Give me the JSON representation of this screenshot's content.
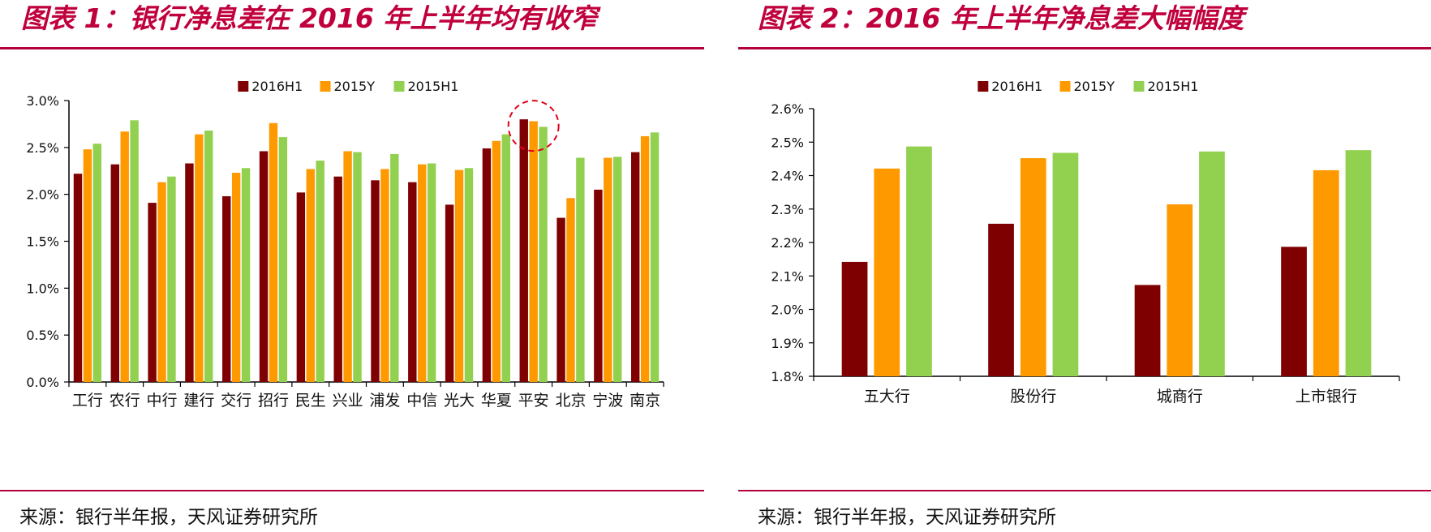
{
  "figures": [
    {
      "title": "图表 1：银行净息差在 2016 年上半年均有收窄",
      "source": "来源：银行半年报，天风证券研究所"
    },
    {
      "title": "图表 2：2016 年上半年净息差大幅幅度",
      "source": "来源：银行半年报，天风证券研究所"
    }
  ],
  "chart_data": [
    {
      "type": "bar",
      "title": "",
      "xlabel": "",
      "ylabel": "",
      "categories": [
        "工行",
        "农行",
        "中行",
        "建行",
        "交行",
        "招行",
        "民生",
        "兴业",
        "浦发",
        "中信",
        "光大",
        "华夏",
        "平安",
        "北京",
        "宁波",
        "南京"
      ],
      "series": [
        {
          "name": "2016H1",
          "color": "#7f0000",
          "values": [
            2.22,
            2.32,
            1.91,
            2.33,
            1.98,
            2.46,
            2.02,
            2.19,
            2.15,
            2.13,
            1.89,
            2.49,
            2.8,
            1.75,
            2.05,
            2.45
          ]
        },
        {
          "name": "2015Y",
          "color": "#ff9900",
          "values": [
            2.48,
            2.67,
            2.13,
            2.64,
            2.23,
            2.76,
            2.27,
            2.46,
            2.27,
            2.32,
            2.26,
            2.57,
            2.78,
            1.96,
            2.39,
            2.62
          ]
        },
        {
          "name": "2015H1",
          "color": "#92d050",
          "values": [
            2.54,
            2.79,
            2.19,
            2.68,
            2.28,
            2.61,
            2.36,
            2.45,
            2.43,
            2.33,
            2.28,
            2.64,
            2.72,
            2.39,
            2.4,
            2.66
          ]
        }
      ],
      "ylim": [
        0,
        3.0
      ],
      "yticks": [
        "0.0%",
        "0.5%",
        "1.0%",
        "1.5%",
        "2.0%",
        "2.5%",
        "3.0%"
      ],
      "grid": false,
      "legend": "top-center",
      "annotation": {
        "type": "dashed-circle",
        "color": "#e0001b",
        "category": "平安"
      }
    },
    {
      "type": "bar",
      "title": "",
      "xlabel": "",
      "ylabel": "",
      "categories": [
        "五大行",
        "股份行",
        "城商行",
        "上市银行"
      ],
      "series": [
        {
          "name": "2016H1",
          "color": "#7f0000",
          "values": [
            2.142,
            2.256,
            2.073,
            2.187
          ]
        },
        {
          "name": "2015Y",
          "color": "#ff9900",
          "values": [
            2.421,
            2.452,
            2.314,
            2.416
          ]
        },
        {
          "name": "2015H1",
          "color": "#92d050",
          "values": [
            2.487,
            2.468,
            2.472,
            2.476
          ]
        }
      ],
      "ylim": [
        1.8,
        2.6
      ],
      "yticks": [
        "1.8%",
        "1.9%",
        "2.0%",
        "2.1%",
        "2.2%",
        "2.3%",
        "2.4%",
        "2.5%",
        "2.6%"
      ],
      "grid": false,
      "legend": "top-center"
    }
  ]
}
